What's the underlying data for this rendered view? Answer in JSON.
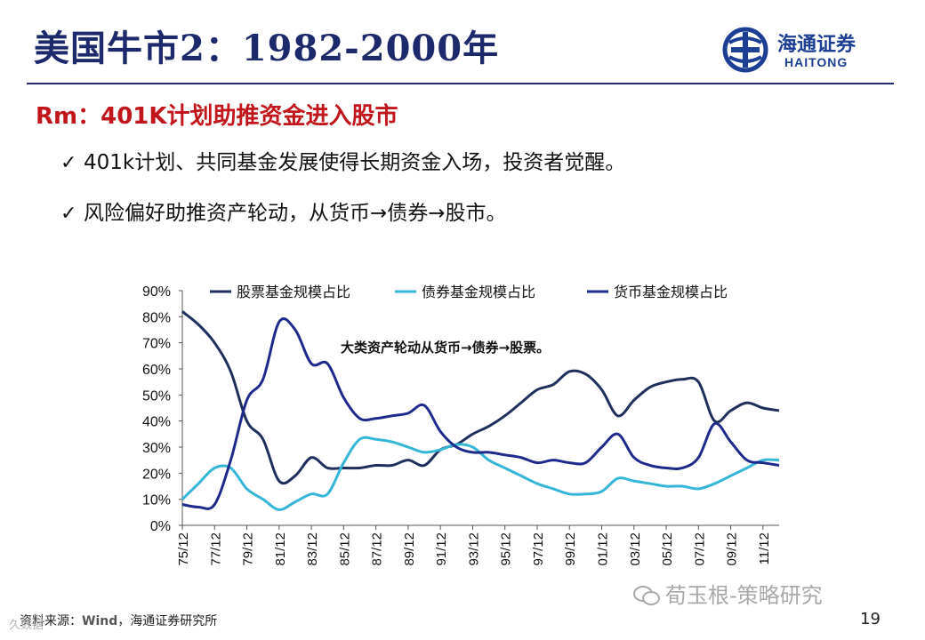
{
  "header": {
    "title": "美国牛市2：1982-2000年",
    "logo_cn": "海通证券",
    "logo_en": "HAITONG",
    "subtitle": "Rm：401K计划助推资金进入股市"
  },
  "bullets": [
    "401k计划、共同基金发展使得长期资金入场，投资者觉醒。",
    "风险偏好助推资产轮动，从货币→债券→股市。"
  ],
  "bullet_mark": "✓",
  "colors": {
    "title": "#1c2a6b",
    "subtitle": "#c0161c",
    "stock": "#1f2f5c",
    "bond": "#35b6d6",
    "money": "#1d2a8c"
  },
  "footer": {
    "source_prefix": "资料来源：",
    "source_wind": "Wind",
    "source_suffix": "，海通证券研究所",
    "watermark": "荀玉根-策略研究",
    "watermark2": "久数据",
    "page_number": "19"
  },
  "chart_data": {
    "type": "line",
    "title": "",
    "annotation": "大类资产轮动从货币→债券→股票。",
    "x": [
      1975,
      1976,
      1977,
      1978,
      1979,
      1980,
      1981,
      1982,
      1983,
      1984,
      1985,
      1986,
      1987,
      1988,
      1989,
      1990,
      1991,
      1992,
      1993,
      1994,
      1995,
      1996,
      1997,
      1998,
      1999,
      2000,
      2001,
      2002,
      2003,
      2004,
      2005,
      2006,
      2007,
      2008,
      2009,
      2010,
      2011,
      2012
    ],
    "x_tick_labels": [
      "75/12",
      "77/12",
      "79/12",
      "81/12",
      "83/12",
      "85/12",
      "87/12",
      "89/12",
      "91/12",
      "93/12",
      "95/12",
      "97/12",
      "99/12",
      "01/12",
      "03/12",
      "05/12",
      "07/12",
      "09/12",
      "11/12"
    ],
    "x_tick_values": [
      1975,
      1977,
      1979,
      1981,
      1983,
      1985,
      1987,
      1989,
      1991,
      1993,
      1995,
      1997,
      1999,
      2001,
      2003,
      2005,
      2007,
      2009,
      2011
    ],
    "xlim": [
      1975,
      2012
    ],
    "ylim": [
      0,
      90
    ],
    "y_ticks": [
      0,
      10,
      20,
      30,
      40,
      50,
      60,
      70,
      80,
      90
    ],
    "y_tick_labels": [
      "0%",
      "10%",
      "20%",
      "30%",
      "40%",
      "50%",
      "60%",
      "70%",
      "80%",
      "90%"
    ],
    "legend_position": "top",
    "series": [
      {
        "name": "股票基金规模占比",
        "color_key": "stock",
        "values": [
          82,
          77,
          70,
          59,
          40,
          33,
          17,
          19,
          26,
          22,
          22,
          22,
          23,
          23,
          25,
          23,
          29,
          31,
          35,
          38,
          42,
          47,
          52,
          54,
          59,
          58,
          52,
          42,
          48,
          53,
          55,
          56,
          55,
          40,
          44,
          47,
          45,
          44
        ]
      },
      {
        "name": "债券基金规模占比",
        "color_key": "bond",
        "values": [
          10,
          16,
          22,
          22,
          14,
          10,
          6,
          9,
          12,
          12,
          24,
          33,
          33,
          32,
          30,
          28,
          29,
          31,
          30,
          25,
          22,
          19,
          16,
          14,
          12,
          12,
          13,
          18,
          17,
          16,
          15,
          15,
          14,
          16,
          19,
          22,
          25,
          25
        ]
      },
      {
        "name": "货币基金规模占比",
        "color_key": "money",
        "values": [
          8,
          7,
          8,
          25,
          48,
          56,
          78,
          75,
          62,
          62,
          49,
          41,
          41,
          42,
          43,
          46,
          36,
          30,
          28,
          28,
          27,
          26,
          24,
          25,
          24,
          24,
          30,
          35,
          26,
          23,
          22,
          22,
          26,
          39,
          32,
          25,
          24,
          23
        ]
      }
    ]
  }
}
